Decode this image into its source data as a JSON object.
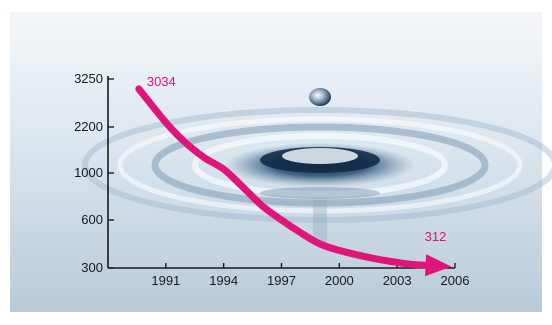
{
  "chart_data": {
    "type": "line",
    "title": "",
    "xlabel": "",
    "ylabel": "",
    "x_ticks": [
      "1991",
      "1994",
      "1997",
      "2000",
      "2003",
      "2006"
    ],
    "y_ticks": [
      "300",
      "600",
      "1000",
      "2200",
      "3250"
    ],
    "series": [
      {
        "x": [
          1989.6,
          1991,
          1992,
          1993,
          1994,
          1995,
          1996,
          1997,
          1998,
          1999,
          2000,
          2001,
          2002,
          2003,
          2004,
          2005.3
        ],
        "y": [
          3034,
          2300,
          1800,
          1400,
          1100,
          880,
          720,
          600,
          520,
          450,
          410,
          380,
          355,
          335,
          320,
          312
        ]
      }
    ],
    "annotations": [
      {
        "text": "3034",
        "x": 1989.6,
        "y": 3034
      },
      {
        "text": "312",
        "x": 2005.3,
        "y": 312
      }
    ],
    "xlim": [
      1988,
      2006
    ],
    "ylim": [
      300,
      3250
    ],
    "grid": false,
    "colors": {
      "line": "#e0157a",
      "axis": "#1a1a1a"
    }
  }
}
